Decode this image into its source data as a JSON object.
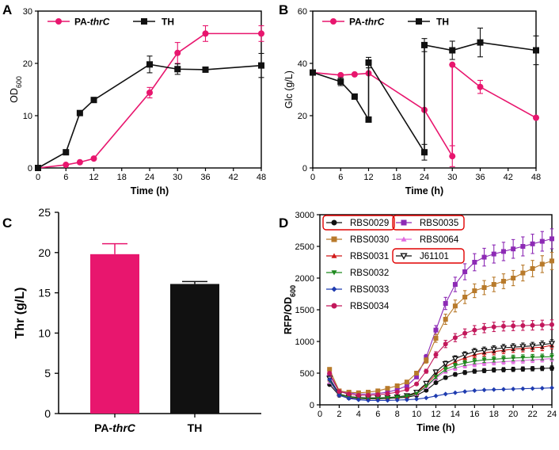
{
  "colors": {
    "pink": "#e8166e",
    "black": "#111111",
    "red_box": "#e00000"
  },
  "chart_data": [
    {
      "panel": "A",
      "type": "line",
      "title": "",
      "xlabel": "Time (h)",
      "ylabel_main": "OD",
      "ylabel_sub": "600",
      "xlim": [
        0,
        48
      ],
      "ylim": [
        0,
        30
      ],
      "xticks": [
        0,
        6,
        12,
        18,
        24,
        30,
        36,
        42,
        48
      ],
      "yticks": [
        0,
        10,
        20,
        30
      ],
      "legend_position": "top-left",
      "series": [
        {
          "name_main": "PA-",
          "name_italic": "thrC",
          "color": "#e8166e",
          "marker": "circle",
          "x": [
            0,
            6,
            9,
            12,
            24,
            30,
            36,
            48
          ],
          "y": [
            0,
            0.6,
            1.1,
            1.8,
            14.4,
            22.0,
            25.7,
            25.7
          ],
          "err": [
            0,
            0,
            0,
            0,
            1.0,
            2.0,
            1.5,
            1.5
          ]
        },
        {
          "name": "TH",
          "color": "#111111",
          "marker": "square",
          "x": [
            0,
            6,
            9,
            12,
            24,
            30,
            36,
            48
          ],
          "y": [
            0,
            3.0,
            10.5,
            13.0,
            19.8,
            18.9,
            18.8,
            19.6
          ],
          "err": [
            0,
            0,
            0,
            0,
            1.6,
            1.0,
            0,
            2.3
          ]
        }
      ]
    },
    {
      "panel": "B",
      "type": "line",
      "title": "",
      "xlabel": "Time (h)",
      "ylabel": "Glc (g/L)",
      "xlim": [
        0,
        48
      ],
      "ylim": [
        0,
        60
      ],
      "xticks": [
        0,
        6,
        12,
        18,
        24,
        30,
        36,
        42,
        48
      ],
      "yticks": [
        0,
        20,
        40,
        60
      ],
      "legend_position": "top-left",
      "series": [
        {
          "name_main": "PA-",
          "name_italic": "thrC",
          "color": "#e8166e",
          "marker": "circle",
          "x": [
            0,
            6,
            9,
            12,
            24,
            30,
            30,
            36,
            48
          ],
          "y": [
            36.5,
            35.5,
            35.8,
            36.2,
            22.2,
            4.5,
            39.5,
            31.0,
            19.2
          ],
          "err": [
            0,
            0,
            0,
            0,
            0,
            4.0,
            0,
            2.5,
            0
          ]
        },
        {
          "name": "TH",
          "color": "#111111",
          "marker": "square",
          "x": [
            0,
            6,
            9,
            12,
            12,
            24,
            24,
            30,
            36,
            48
          ],
          "y": [
            36.5,
            33.0,
            27.3,
            18.5,
            40.3,
            6.0,
            47.0,
            45.0,
            48.0,
            45.0
          ],
          "err": [
            0,
            1.5,
            0,
            0,
            2.0,
            3.0,
            2.5,
            3.5,
            5.5,
            5.5
          ]
        }
      ]
    },
    {
      "panel": "C",
      "type": "bar",
      "title": "",
      "xlabel": "",
      "ylabel": "Thr (g/L)",
      "ylim": [
        0,
        25
      ],
      "yticks": [
        0,
        5,
        10,
        15,
        20,
        25
      ],
      "categories": [
        {
          "main": "PA-",
          "italic": "thrC"
        },
        {
          "main": "TH",
          "italic": ""
        }
      ],
      "values": [
        19.8,
        16.1
      ],
      "errors": [
        1.3,
        0.3
      ],
      "bar_colors": [
        "#e8166e",
        "#111111"
      ]
    },
    {
      "panel": "D",
      "type": "line",
      "title": "",
      "xlabel": "Time (h)",
      "ylabel_main": "RFP/OD",
      "ylabel_sub": "600",
      "xlim": [
        0,
        24
      ],
      "ylim": [
        0,
        3000
      ],
      "xticks": [
        0,
        2,
        4,
        6,
        8,
        10,
        12,
        14,
        16,
        18,
        20,
        22,
        24
      ],
      "yticks": [
        0,
        500,
        1000,
        1500,
        2000,
        2500,
        3000
      ],
      "legend_position": "top-left",
      "x": [
        1,
        2,
        3,
        4,
        5,
        6,
        7,
        8,
        9,
        10,
        11,
        12,
        13,
        14,
        15,
        16,
        17,
        18,
        19,
        20,
        21,
        22,
        23,
        24
      ],
      "series": [
        {
          "name": "RBS0029",
          "color": "#111111",
          "marker": "circle",
          "boxed": true,
          "values": [
            320,
            150,
            110,
            100,
            95,
            95,
            100,
            110,
            120,
            150,
            230,
            350,
            430,
            480,
            510,
            530,
            540,
            550,
            555,
            560,
            565,
            570,
            575,
            580
          ]
        },
        {
          "name": "RBS0035",
          "color": "#8d2ab5",
          "marker": "square",
          "boxed": true,
          "values": [
            470,
            210,
            190,
            170,
            170,
            180,
            200,
            240,
            300,
            440,
            750,
            1180,
            1600,
            1900,
            2100,
            2250,
            2330,
            2380,
            2420,
            2460,
            2500,
            2540,
            2580,
            2620
          ]
        },
        {
          "name": "RBS0030",
          "color": "#b87a2b",
          "marker": "square",
          "boxed": false,
          "values": [
            560,
            220,
            200,
            190,
            200,
            220,
            260,
            300,
            360,
            500,
            700,
            1050,
            1350,
            1560,
            1700,
            1800,
            1850,
            1900,
            1950,
            2000,
            2080,
            2150,
            2220,
            2270
          ]
        },
        {
          "name": "RBS0064",
          "color": "#e06be0",
          "marker": "triangle",
          "boxed": false,
          "values": [
            360,
            160,
            120,
            110,
            105,
            105,
            110,
            120,
            135,
            170,
            280,
            420,
            530,
            580,
            620,
            640,
            660,
            670,
            680,
            690,
            700,
            710,
            720,
            730
          ]
        },
        {
          "name": "RBS0031",
          "color": "#d01818",
          "marker": "triangle",
          "boxed": false,
          "values": [
            400,
            170,
            130,
            115,
            110,
            110,
            115,
            125,
            140,
            190,
            320,
            480,
            600,
            680,
            740,
            790,
            820,
            840,
            860,
            880,
            890,
            900,
            910,
            940
          ]
        },
        {
          "name": "J61101",
          "color": "#111111",
          "marker": "triangle-down-open",
          "boxed": true,
          "values": [
            420,
            170,
            130,
            115,
            110,
            110,
            115,
            125,
            145,
            200,
            340,
            520,
            650,
            730,
            790,
            840,
            860,
            880,
            900,
            910,
            920,
            930,
            950,
            970
          ]
        },
        {
          "name": "RBS0032",
          "color": "#1e8a1e",
          "marker": "triangle-down",
          "boxed": false,
          "values": [
            380,
            160,
            125,
            110,
            105,
            105,
            110,
            120,
            135,
            175,
            290,
            440,
            560,
            620,
            660,
            690,
            710,
            720,
            730,
            740,
            745,
            750,
            755,
            760
          ]
        },
        {
          "name": "RBS0033",
          "color": "#1f3cb0",
          "marker": "diamond",
          "boxed": false,
          "values": [
            400,
            150,
            100,
            80,
            70,
            70,
            70,
            75,
            80,
            90,
            110,
            140,
            170,
            190,
            210,
            225,
            235,
            240,
            245,
            250,
            255,
            258,
            262,
            268
          ]
        },
        {
          "name": "RBS0034",
          "color": "#c2185b",
          "marker": "circle",
          "boxed": false,
          "values": [
            500,
            210,
            170,
            150,
            150,
            160,
            175,
            200,
            240,
            330,
            530,
            790,
            960,
            1060,
            1130,
            1180,
            1210,
            1230,
            1240,
            1245,
            1250,
            1255,
            1260,
            1265
          ]
        }
      ]
    }
  ]
}
